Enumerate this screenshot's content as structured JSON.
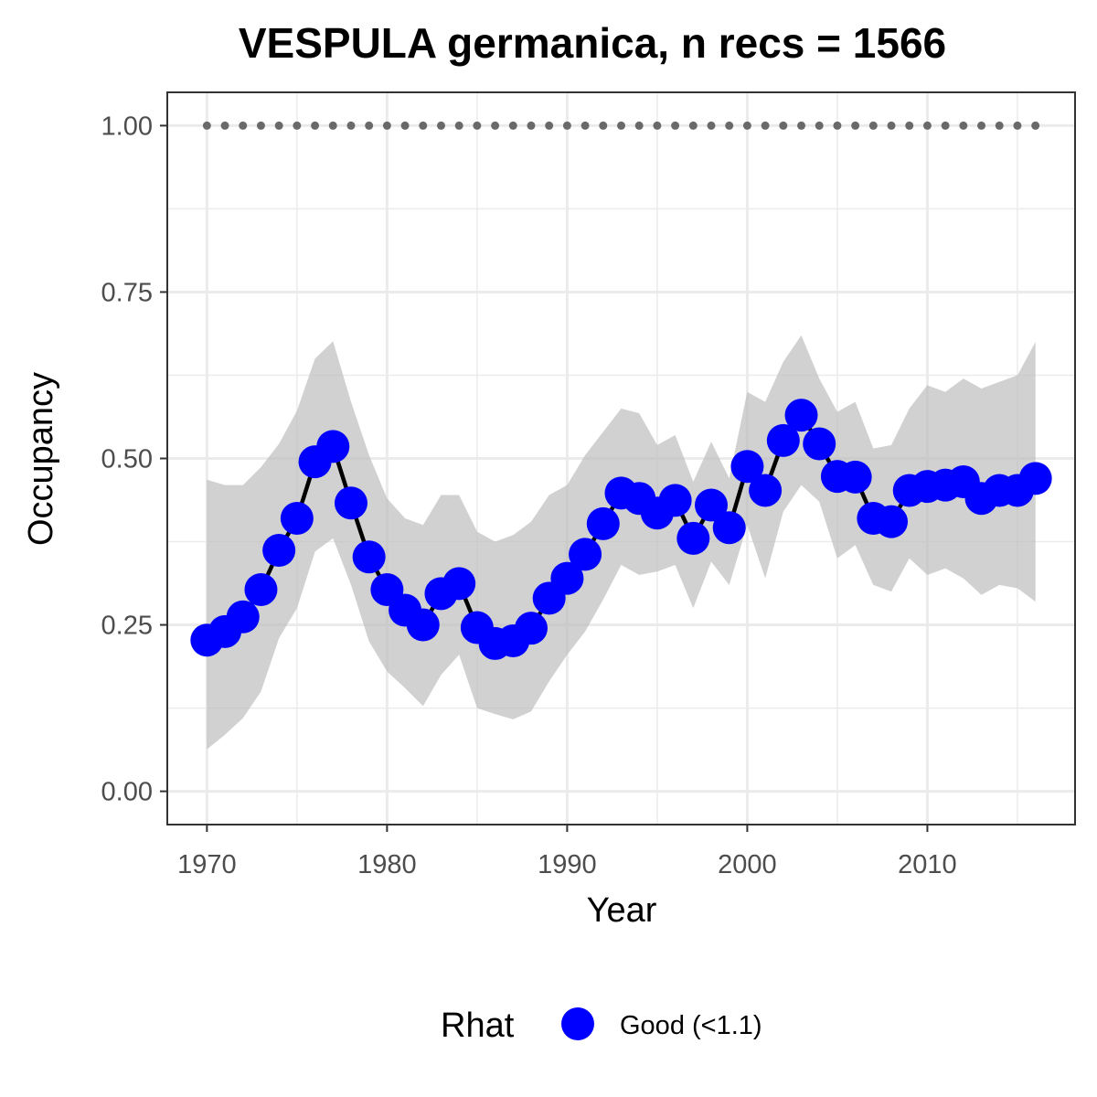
{
  "chart_data": {
    "type": "line",
    "title": "VESPULA germanica, n recs = 1566",
    "xlabel": "Year",
    "ylabel": "Occupancy",
    "xlim": [
      1967.8,
      2018.2
    ],
    "ylim": [
      -0.05,
      1.05
    ],
    "x_ticks": [
      1970,
      1980,
      1990,
      2000,
      2010
    ],
    "x_tick_labels": [
      "1970",
      "1980",
      "1990",
      "2000",
      "2010"
    ],
    "x_minor_ticks": [
      1975,
      1985,
      1995,
      2005,
      2015
    ],
    "y_ticks": [
      0,
      0.25,
      0.5,
      0.75,
      1
    ],
    "y_tick_labels": [
      "0.00",
      "0.25",
      "0.50",
      "0.75",
      "1.00"
    ],
    "y_minor_ticks": [
      0.125,
      0.375,
      0.625,
      0.875
    ],
    "grid": true,
    "x": [
      1970,
      1971,
      1972,
      1973,
      1974,
      1975,
      1976,
      1977,
      1978,
      1979,
      1980,
      1981,
      1982,
      1983,
      1984,
      1985,
      1986,
      1987,
      1988,
      1989,
      1990,
      1991,
      1992,
      1993,
      1994,
      1995,
      1996,
      1997,
      1998,
      1999,
      2000,
      2001,
      2002,
      2003,
      2004,
      2005,
      2006,
      2007,
      2008,
      2009,
      2010,
      2011,
      2012,
      2013,
      2014,
      2015,
      2016
    ],
    "series": [
      {
        "values": [
          0.227,
          0.24,
          0.262,
          0.303,
          0.362,
          0.41,
          0.495,
          0.518,
          0.433,
          0.352,
          0.303,
          0.272,
          0.25,
          0.297,
          0.312,
          0.246,
          0.222,
          0.226,
          0.245,
          0.29,
          0.32,
          0.356,
          0.402,
          0.448,
          0.44,
          0.418,
          0.437,
          0.38,
          0.43,
          0.396,
          0.488,
          0.452,
          0.527,
          0.565,
          0.522,
          0.473,
          0.472,
          0.41,
          0.405,
          0.452,
          0.458,
          0.46,
          0.465,
          0.44,
          0.452,
          0.452,
          0.47
        ],
        "lower": [
          0.063,
          0.085,
          0.11,
          0.15,
          0.23,
          0.275,
          0.36,
          0.38,
          0.31,
          0.225,
          0.18,
          0.155,
          0.128,
          0.175,
          0.205,
          0.125,
          0.116,
          0.108,
          0.12,
          0.165,
          0.205,
          0.24,
          0.288,
          0.34,
          0.325,
          0.33,
          0.34,
          0.275,
          0.345,
          0.31,
          0.4,
          0.32,
          0.42,
          0.46,
          0.435,
          0.35,
          0.37,
          0.31,
          0.3,
          0.35,
          0.325,
          0.335,
          0.32,
          0.295,
          0.31,
          0.305,
          0.285
        ],
        "upper": [
          0.468,
          0.46,
          0.46,
          0.487,
          0.522,
          0.572,
          0.65,
          0.676,
          0.585,
          0.505,
          0.44,
          0.41,
          0.4,
          0.445,
          0.445,
          0.39,
          0.375,
          0.385,
          0.405,
          0.445,
          0.46,
          0.505,
          0.54,
          0.575,
          0.568,
          0.52,
          0.535,
          0.465,
          0.525,
          0.47,
          0.6,
          0.585,
          0.645,
          0.685,
          0.62,
          0.57,
          0.585,
          0.515,
          0.52,
          0.575,
          0.61,
          0.6,
          0.62,
          0.605,
          0.615,
          0.625,
          0.675
        ]
      },
      {
        "values": [
          1,
          1,
          1,
          1,
          1,
          1,
          1,
          1,
          1,
          1,
          1,
          1,
          1,
          1,
          1,
          1,
          1,
          1,
          1,
          1,
          1,
          1,
          1,
          1,
          1,
          1,
          1,
          1,
          1,
          1,
          1,
          1,
          1,
          1,
          1,
          1,
          1,
          1,
          1,
          1,
          1,
          1,
          1,
          1,
          1,
          1,
          1
        ]
      }
    ],
    "legend": {
      "position": "bottom",
      "title": "Rhat",
      "entries": [
        {
          "label": "Good (<1.1)"
        }
      ]
    },
    "colors": {
      "points": "#0000ff",
      "line": "#000000",
      "ribbon": "#bdbdbd",
      "reference_points": "#696969",
      "grid": "#ebebeb",
      "panel_border": "#333333"
    }
  }
}
